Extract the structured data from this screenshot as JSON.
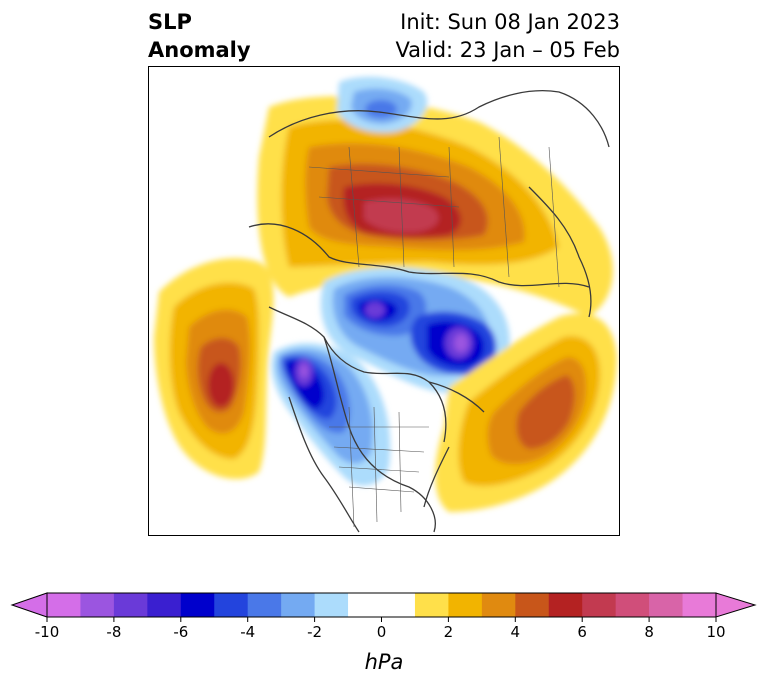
{
  "title": {
    "left_line1": "SLP",
    "left_line2": "Anomaly",
    "init": "Init: Sun 08 Jan 2023",
    "valid": "Valid: 23 Jan – 05 Feb"
  },
  "map": {
    "projection": "polar-stereographic",
    "field": "sea level pressure anomaly",
    "features": [
      "positive anomaly center over northern Russia/Siberia",
      "negative anomaly center over Arctic Ocean and Canadian Archipelago",
      "negative anomaly center over western Canada",
      "positive anomaly center over North Pacific",
      "positive anomaly over North Atlantic"
    ]
  },
  "colorbar": {
    "units": "hPa",
    "extend": "both",
    "levels": [
      -10,
      -9,
      -8,
      -7,
      -6,
      -5,
      -4,
      -3,
      -2,
      -1,
      1,
      2,
      3,
      4,
      5,
      6,
      7,
      8,
      9,
      10
    ],
    "colors": [
      "#d46ee8",
      "#9b55e0",
      "#6a3ad8",
      "#3a1fd0",
      "#0000cc",
      "#2344dd",
      "#4a78e8",
      "#74aaf2",
      "#acdcfc",
      "#ffffff",
      "#ffe04a",
      "#f2b400",
      "#e08a10",
      "#c8561a",
      "#b42222",
      "#c23a50",
      "#d04e7a",
      "#d864a8",
      "#e87ad8"
    ],
    "ticks": [
      {
        "value": -10,
        "label": "-10"
      },
      {
        "value": -8,
        "label": "-8"
      },
      {
        "value": -6,
        "label": "-6"
      },
      {
        "value": -4,
        "label": "-4"
      },
      {
        "value": -2,
        "label": "-2"
      },
      {
        "value": 0,
        "label": "0"
      },
      {
        "value": 2,
        "label": "2"
      },
      {
        "value": 4,
        "label": "4"
      },
      {
        "value": 6,
        "label": "6"
      },
      {
        "value": 8,
        "label": "8"
      },
      {
        "value": 10,
        "label": "10"
      }
    ]
  }
}
